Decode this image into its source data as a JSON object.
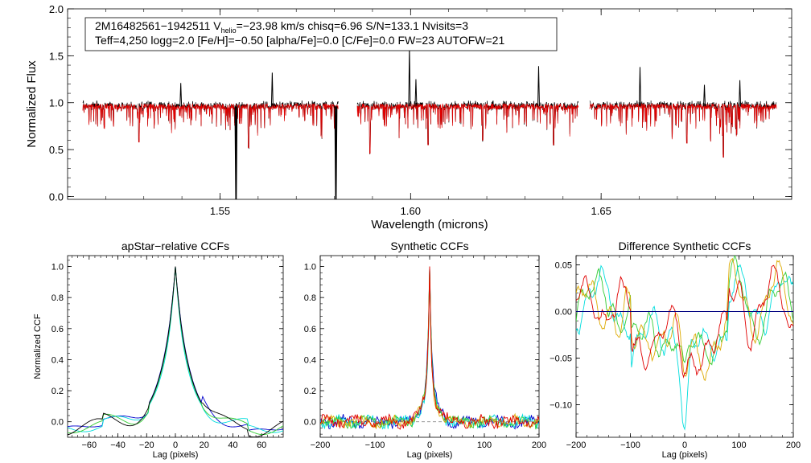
{
  "info": {
    "star_id": "2M16482561−1942511",
    "v_prefix": "V",
    "v_sub": "helio",
    "v_rest": "=−23.98 km/s  chisq=6.96  S/N=133.1  Nvisits=3",
    "line2": "Teff=4,250 logg=2.0 [Fe/H]=−0.50 [alpha/Fe]=0.0 [C/Fe]=0.0 FW=23 AUTOFW=21"
  },
  "colors": {
    "observed": "#000000",
    "model": "#e00000",
    "ccf_series": [
      "#0000cc",
      "#00dddd",
      "#33cc33",
      "#ddaa00",
      "#e00000",
      "#000000"
    ],
    "zero_line": "#000080",
    "dashed_zero": "#888888"
  },
  "chart_data": [
    {
      "id": "spectrum",
      "type": "line",
      "title": "",
      "xlabel": "Wavelength (microns)",
      "ylabel": "Normalized Flux",
      "xlim": [
        1.51,
        1.7
      ],
      "ylim": [
        -0.03,
        2.0
      ],
      "xticks": [
        1.55,
        1.6,
        1.65
      ],
      "xtick_labels": [
        "1.55",
        "1.60",
        "1.65"
      ],
      "yticks": [
        0.0,
        0.5,
        1.0,
        1.5,
        2.0
      ],
      "ytick_labels": [
        "0.0",
        "0.5",
        "1.0",
        "1.5",
        "2.0"
      ],
      "chip_ranges": [
        [
          1.514,
          1.581
        ],
        [
          1.586,
          1.644
        ],
        [
          1.647,
          1.696
        ]
      ],
      "continuum": 0.96,
      "spikes": [
        {
          "x": 1.5542,
          "y": -0.03,
          "series": "observed"
        },
        {
          "x": 1.5804,
          "y": -0.03,
          "series": "observed"
        },
        {
          "x": 1.5637,
          "y": 1.32,
          "series": "observed"
        },
        {
          "x": 1.5997,
          "y": 1.6,
          "series": "observed"
        },
        {
          "x": 1.6014,
          "y": 1.25,
          "series": "observed"
        },
        {
          "x": 1.6336,
          "y": 1.39,
          "series": "observed"
        },
        {
          "x": 1.6864,
          "y": 1.24,
          "series": "observed"
        },
        {
          "x": 1.6771,
          "y": 1.19,
          "series": "observed"
        },
        {
          "x": 1.6602,
          "y": 1.38,
          "series": "observed"
        },
        {
          "x": 1.5397,
          "y": 1.21,
          "series": "observed"
        }
      ],
      "absorption_dips": [
        {
          "x": 1.5287,
          "y": 0.58
        },
        {
          "x": 1.5575,
          "y": 0.52
        },
        {
          "x": 1.5893,
          "y": 0.46
        },
        {
          "x": 1.6046,
          "y": 0.55
        },
        {
          "x": 1.6189,
          "y": 0.6
        },
        {
          "x": 1.6375,
          "y": 0.55
        },
        {
          "x": 1.6725,
          "y": 0.57
        },
        {
          "x": 1.6821,
          "y": 0.42
        }
      ],
      "series": [
        {
          "name": "observed",
          "color": "#000000"
        },
        {
          "name": "model",
          "color": "#e00000"
        }
      ]
    },
    {
      "id": "apstar_ccf",
      "type": "line",
      "title": "apStar−relative CCFs",
      "xlabel": "Lag (pixels)",
      "ylabel": "Normalized CCF",
      "xlim": [
        -75,
        75
      ],
      "ylim": [
        -0.1,
        1.07
      ],
      "xticks": [
        -60,
        -40,
        -20,
        0,
        20,
        40,
        60
      ],
      "xtick_labels": [
        "−60",
        "−40",
        "−20",
        "0",
        "20",
        "40",
        "60"
      ],
      "yticks": [
        0.0,
        0.2,
        0.4,
        0.6,
        0.8,
        1.0
      ],
      "ytick_labels": [
        "0.0",
        "0.2",
        "0.4",
        "0.6",
        "0.8",
        "1.0"
      ],
      "peak": {
        "x": 0,
        "y": 1.0
      },
      "series": [
        {
          "name": "ccf-1",
          "color": "#0000cc",
          "width": 6.0,
          "tail": 0.04
        },
        {
          "name": "ccf-2",
          "color": "#00dddd",
          "width": 5.0,
          "tail": 0.01
        },
        {
          "name": "ccf-3",
          "color": "#33cc33",
          "width": 5.5,
          "tail": 0.02
        },
        {
          "name": "ccf-4",
          "color": "#000000",
          "width": 5.8,
          "tail": 0.03
        }
      ]
    },
    {
      "id": "synthetic_ccf",
      "type": "line",
      "title": "Synthetic CCFs",
      "xlabel": "Lag (pixels)",
      "ylabel": "",
      "xlim": [
        -200,
        200
      ],
      "ylim": [
        -0.1,
        1.07
      ],
      "xticks": [
        -200,
        -100,
        0,
        100,
        200
      ],
      "xtick_labels": [
        "−200",
        "−100",
        "0",
        "100",
        "200"
      ],
      "yticks": [
        0.0,
        0.2,
        0.4,
        0.6,
        0.8,
        1.0
      ],
      "ytick_labels": [
        "0.0",
        "0.2",
        "0.4",
        "0.6",
        "0.8",
        "1.0"
      ],
      "peak": {
        "x": 0,
        "y": 1.0
      },
      "series": [
        {
          "name": "syn-1",
          "color": "#0000cc",
          "width": 7.0
        },
        {
          "name": "syn-2",
          "color": "#00dddd",
          "width": 5.0
        },
        {
          "name": "syn-3",
          "color": "#33cc33",
          "width": 6.0
        },
        {
          "name": "syn-4",
          "color": "#ddaa00",
          "width": 5.5
        },
        {
          "name": "syn-5",
          "color": "#e00000",
          "width": 6.0
        }
      ]
    },
    {
      "id": "difference_ccf",
      "type": "line",
      "title": "Difference Synthetic CCFs",
      "xlabel": "Lag (pixels)",
      "ylabel": "",
      "xlim": [
        -200,
        200
      ],
      "ylim": [
        -0.135,
        0.06
      ],
      "xticks": [
        -200,
        -100,
        0,
        100,
        200
      ],
      "xtick_labels": [
        "−200",
        "−100",
        "0",
        "100",
        "200"
      ],
      "yticks": [
        0.05,
        0.0,
        -0.05,
        -0.1
      ],
      "ytick_labels": [
        "0.05",
        "0.00",
        "−0.05",
        "−0.10"
      ],
      "zero_line": 0.0,
      "series": [
        {
          "name": "diff-1",
          "color": "#00dddd",
          "dip": -0.125
        },
        {
          "name": "diff-2",
          "color": "#33cc33",
          "dip": -0.08
        },
        {
          "name": "diff-3",
          "color": "#ddaa00",
          "dip": -0.07
        },
        {
          "name": "diff-4",
          "color": "#e00000",
          "dip": -0.065
        }
      ]
    }
  ]
}
